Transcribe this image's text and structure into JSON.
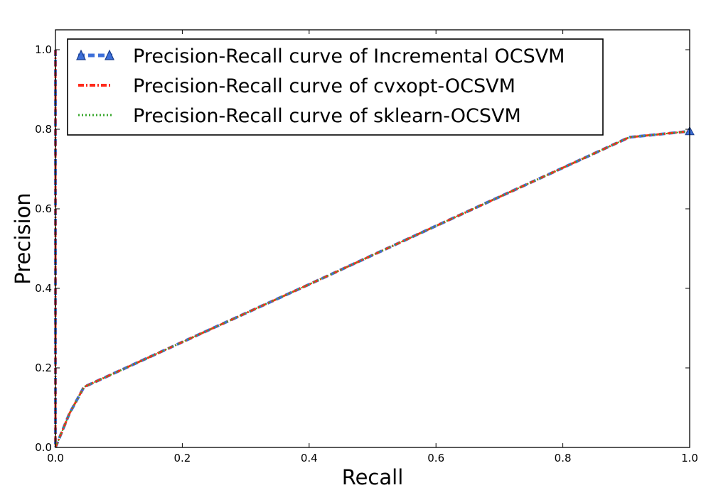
{
  "chart_data": {
    "type": "line",
    "title": "",
    "xlabel": "Recall",
    "ylabel": "Precision",
    "xlim": [
      0.0,
      1.0
    ],
    "ylim": [
      0.0,
      1.05
    ],
    "xticks": [
      "0.0",
      "0.2",
      "0.4",
      "0.6",
      "0.8",
      "1.0"
    ],
    "yticks": [
      "0.0",
      "0.2",
      "0.4",
      "0.6",
      "0.8",
      "1.0"
    ],
    "legend_position": "top-left",
    "grid": false,
    "series": [
      {
        "name": "Precision-Recall curve of Incremental OCSVM",
        "color": "#3d6fd9",
        "style": "dashed-triangle",
        "points": [
          [
            0.0,
            1.0
          ],
          [
            0.0,
            0.0
          ],
          [
            0.022,
            0.085
          ],
          [
            0.045,
            0.152
          ],
          [
            0.2,
            0.265
          ],
          [
            0.4,
            0.41
          ],
          [
            0.6,
            0.557
          ],
          [
            0.8,
            0.703
          ],
          [
            0.905,
            0.78
          ],
          [
            1.0,
            0.795
          ]
        ]
      },
      {
        "name": "Precision-Recall curve of cvxopt-OCSVM",
        "color": "#ff2a1a",
        "style": "dashdot",
        "points": [
          [
            0.0,
            1.0
          ],
          [
            0.0,
            0.0
          ],
          [
            0.022,
            0.085
          ],
          [
            0.045,
            0.152
          ],
          [
            0.2,
            0.265
          ],
          [
            0.4,
            0.41
          ],
          [
            0.6,
            0.557
          ],
          [
            0.8,
            0.703
          ],
          [
            0.905,
            0.78
          ],
          [
            1.0,
            0.795
          ]
        ]
      },
      {
        "name": "Precision-Recall curve of sklearn-OCSVM",
        "color": "#3aa82e",
        "style": "dotted",
        "points": [
          [
            0.0,
            1.0
          ],
          [
            0.0,
            0.0
          ],
          [
            0.022,
            0.085
          ],
          [
            0.045,
            0.152
          ],
          [
            0.2,
            0.265
          ],
          [
            0.4,
            0.41
          ],
          [
            0.6,
            0.557
          ],
          [
            0.8,
            0.703
          ],
          [
            0.905,
            0.78
          ],
          [
            1.0,
            0.795
          ]
        ]
      }
    ]
  }
}
